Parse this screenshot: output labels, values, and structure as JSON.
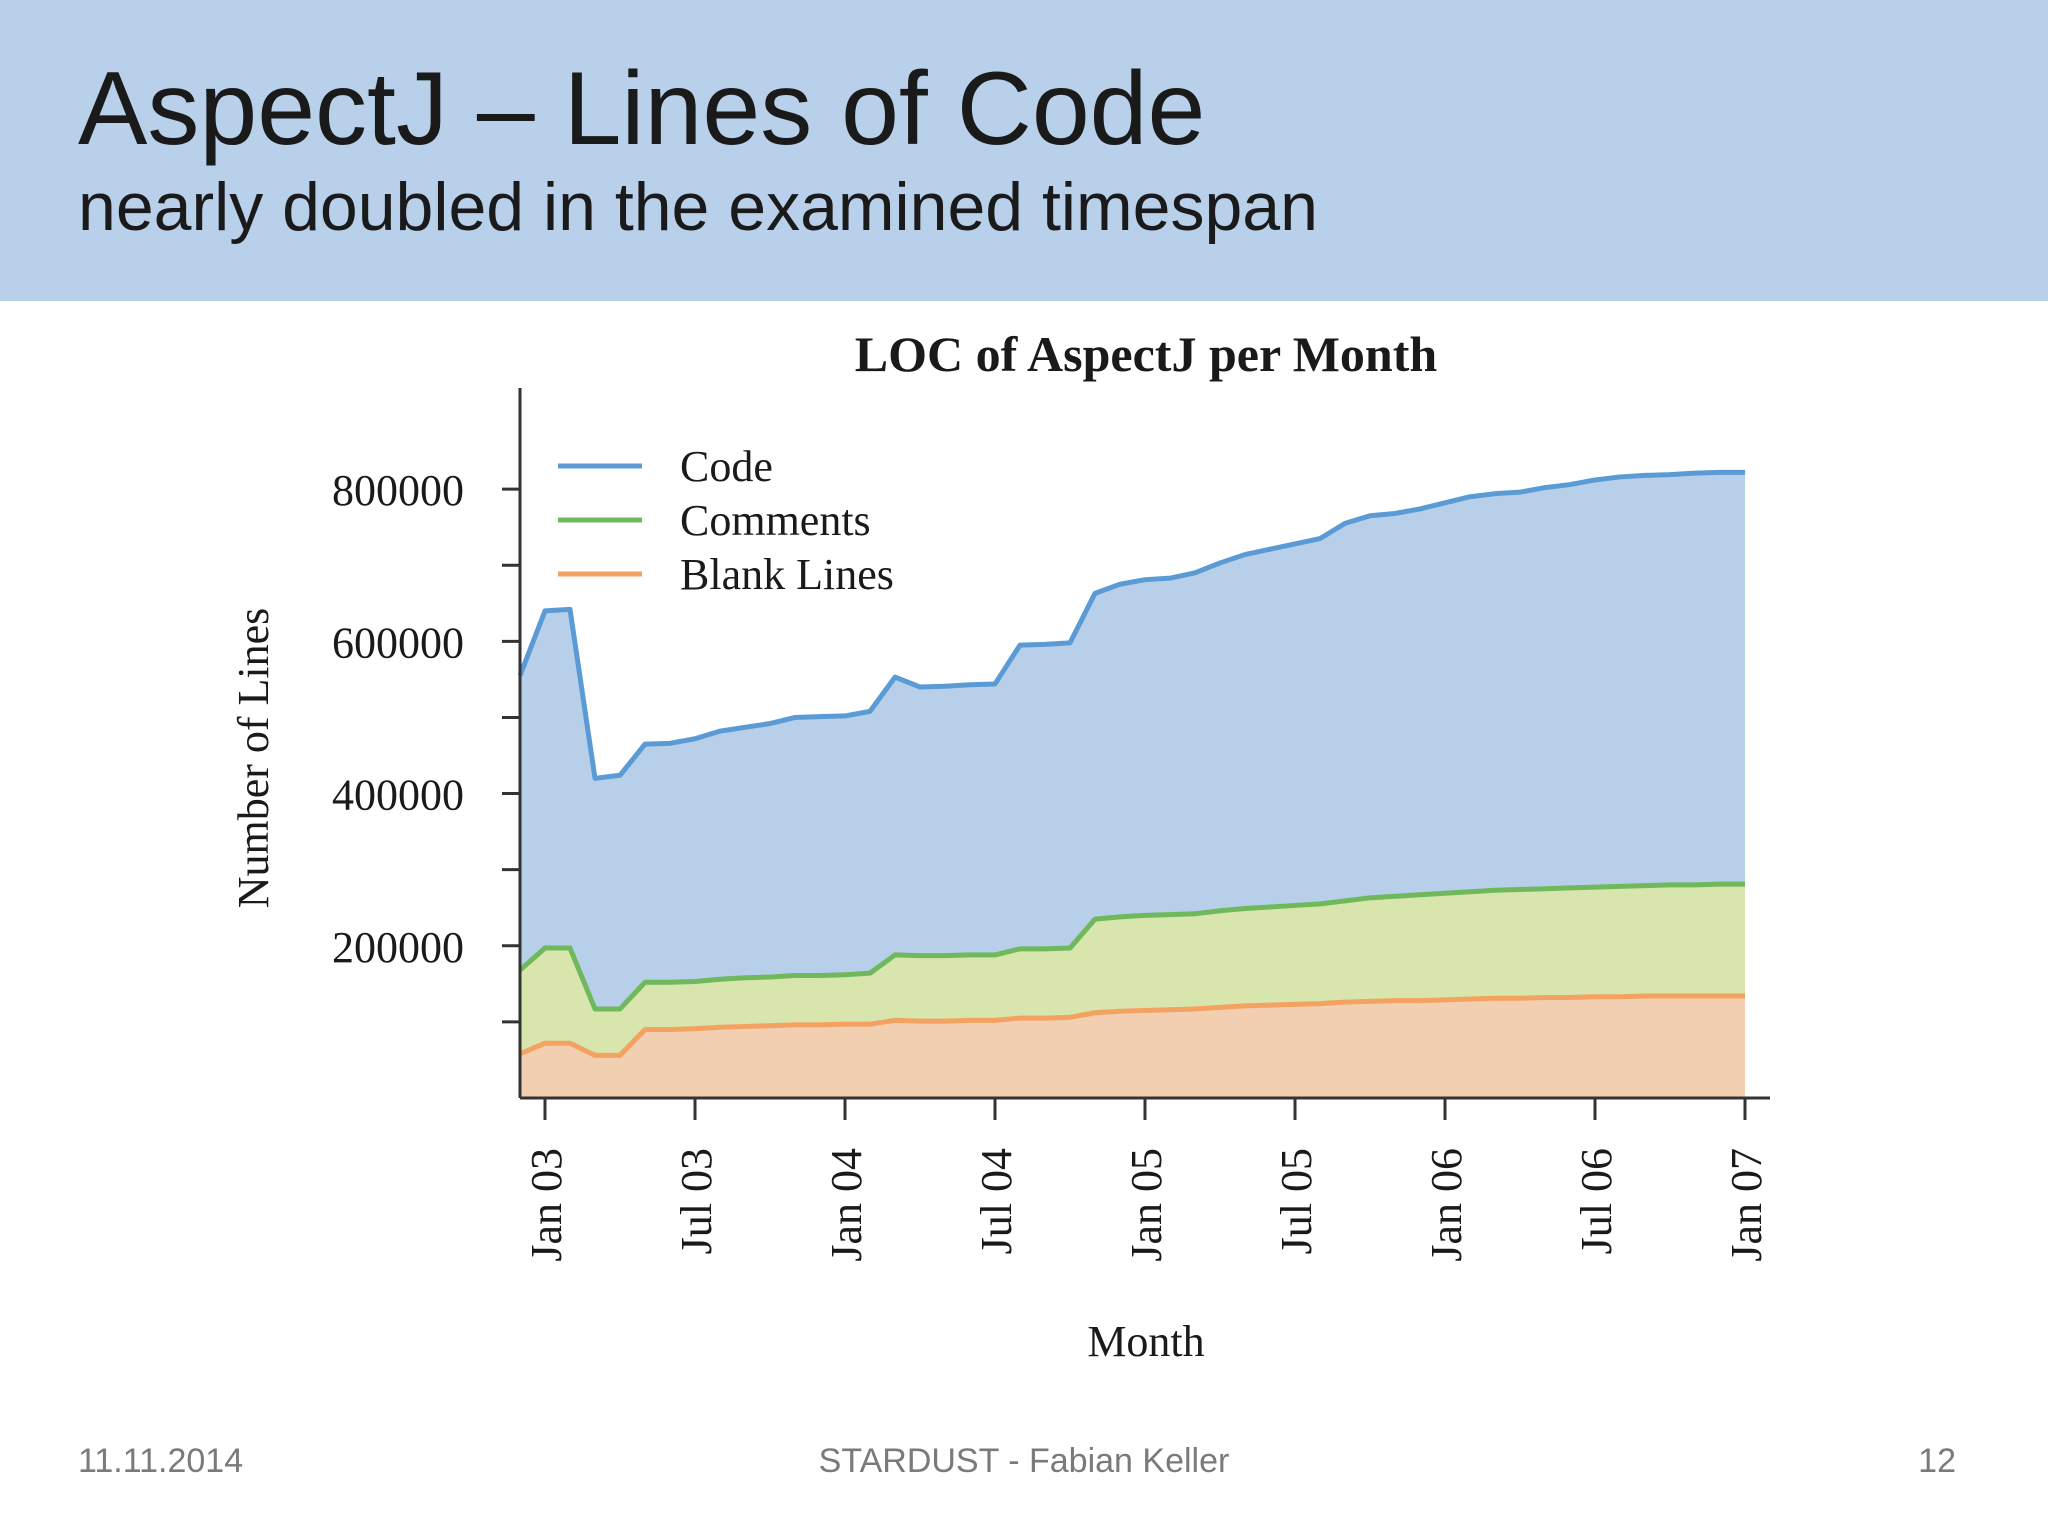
{
  "slide": {
    "title": "AspectJ – Lines of Code",
    "subtitle": "nearly doubled in the examined timespan"
  },
  "footer": {
    "date": "11.11.2014",
    "center": "STARDUST - Fabian Keller",
    "page": "12"
  },
  "chart_data": {
    "type": "area",
    "title": "LOC of AspectJ per Month",
    "xlabel": "Month",
    "ylabel": "Number of Lines",
    "x_ticks": [
      "Jan 03",
      "Jul 03",
      "Jan 04",
      "Jul 04",
      "Jan 05",
      "Jul 05",
      "Jan 06",
      "Jul 06",
      "Jan 07"
    ],
    "y_ticks": [
      200000,
      400000,
      600000,
      800000
    ],
    "ylim": [
      0,
      900000
    ],
    "legend": "top-left",
    "grid": false,
    "x": [
      "Dec 02",
      "Jan 03",
      "Feb 03",
      "Mar 03",
      "Apr 03",
      "May 03",
      "Jun 03",
      "Jul 03",
      "Aug 03",
      "Sep 03",
      "Oct 03",
      "Nov 03",
      "Dec 03",
      "Jan 04",
      "Feb 04",
      "Mar 04",
      "Apr 04",
      "May 04",
      "Jun 04",
      "Jul 04",
      "Aug 04",
      "Sep 04",
      "Oct 04",
      "Nov 04",
      "Dec 04",
      "Jan 05",
      "Feb 05",
      "Mar 05",
      "Apr 05",
      "May 05",
      "Jun 05",
      "Jul 05",
      "Aug 05",
      "Sep 05",
      "Oct 05",
      "Nov 05",
      "Dec 05",
      "Jan 06",
      "Feb 06",
      "Mar 06",
      "Apr 06",
      "May 06",
      "Jun 06",
      "Jul 06",
      "Aug 06",
      "Sep 06",
      "Oct 06",
      "Nov 06",
      "Dec 06",
      "Jan 07"
    ],
    "series": [
      {
        "name": "Code",
        "color": "#5b9bd5",
        "fill": "#b8cfea",
        "values": [
          555000,
          640000,
          642000,
          420000,
          424000,
          465000,
          466000,
          472000,
          482000,
          487000,
          492000,
          500000,
          501000,
          502000,
          508000,
          553000,
          540000,
          541000,
          543000,
          544000,
          595000,
          596000,
          598000,
          663000,
          675000,
          681000,
          683000,
          690000,
          703000,
          714000,
          721000,
          728000,
          735000,
          755000,
          765000,
          768000,
          774000,
          782000,
          790000,
          794000,
          796000,
          802000,
          806000,
          812000,
          816000,
          818000,
          819000,
          821000,
          822000,
          822000
        ]
      },
      {
        "name": "Comments",
        "color": "#70b85c",
        "fill": "#d8e5ac",
        "values": [
          168000,
          197000,
          197000,
          117000,
          117000,
          152000,
          152000,
          153000,
          156000,
          158000,
          159000,
          161000,
          161000,
          162000,
          164000,
          188000,
          187000,
          187000,
          188000,
          188000,
          196000,
          196000,
          197000,
          235000,
          238000,
          240000,
          241000,
          242000,
          246000,
          249000,
          251000,
          253000,
          255000,
          259000,
          263000,
          265000,
          267000,
          269000,
          271000,
          273000,
          274000,
          275000,
          276000,
          277000,
          278000,
          279000,
          280000,
          280000,
          281000,
          281000
        ]
      },
      {
        "name": "Blank Lines",
        "color": "#f4a261",
        "fill": "#f2cfb0",
        "values": [
          58000,
          72000,
          72000,
          56000,
          56000,
          90000,
          90000,
          91000,
          93000,
          94000,
          95000,
          96000,
          96000,
          97000,
          97000,
          102000,
          101000,
          101000,
          102000,
          102000,
          105000,
          105000,
          106000,
          112000,
          114000,
          115000,
          116000,
          117000,
          119000,
          121000,
          122000,
          123000,
          124000,
          126000,
          127000,
          128000,
          128000,
          129000,
          130000,
          131000,
          131000,
          132000,
          132000,
          133000,
          133000,
          134000,
          134000,
          134000,
          134000,
          134000
        ]
      }
    ]
  }
}
